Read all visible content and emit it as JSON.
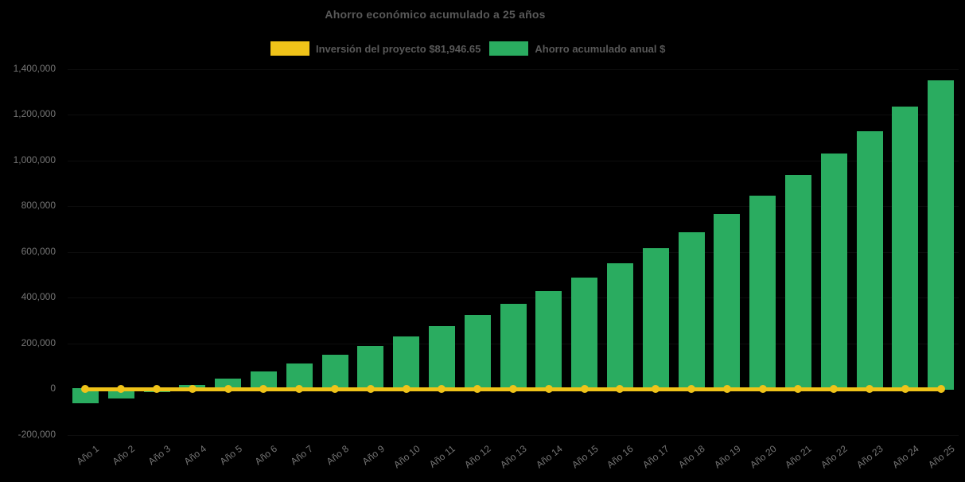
{
  "title": "Ahorro económico acumulado a 25 años",
  "legend": {
    "items": [
      {
        "label": "Inversión del proyecto $81,946.65",
        "color": "#EFC319",
        "series_type": "line"
      },
      {
        "label": "Ahorro acumulado anual $",
        "color": "#2AAC60",
        "series_type": "bar"
      }
    ]
  },
  "colors": {
    "background": "#000000",
    "bar_green": "#2AAC60",
    "line_yellow": "#EFC319",
    "title_text": "#595959",
    "axis_text": "#757575"
  },
  "y_axis": {
    "ticks": [
      {
        "label": "1,400,000",
        "value": 1400000
      },
      {
        "label": "1,200,000",
        "value": 1200000
      },
      {
        "label": "1,000,000",
        "value": 1000000
      },
      {
        "label": "800,000",
        "value": 800000
      },
      {
        "label": "600,000",
        "value": 600000
      },
      {
        "label": "400,000",
        "value": 400000
      },
      {
        "label": "200,000",
        "value": 200000
      },
      {
        "label": "0",
        "value": 0
      },
      {
        "label": "-200,000",
        "value": -200000
      }
    ]
  },
  "chart_data": {
    "type": "bar",
    "title": "Ahorro económico acumulado a 25 años",
    "categories": [
      "Año 1",
      "Año 2",
      "Año 3",
      "Año 4",
      "Año 5",
      "Año 6",
      "Año 7",
      "Año 8",
      "Año 9",
      "Año 10",
      "Año 11",
      "Año 12",
      "Año 13",
      "Año 14",
      "Año 15",
      "Año 16",
      "Año 17",
      "Año 18",
      "Año 19",
      "Año 20",
      "Año 21",
      "Año 22",
      "Año 23",
      "Año 24",
      "Año 25"
    ],
    "series": [
      {
        "name": "Ahorro acumulado anual $",
        "type": "bar",
        "color": "#2AAC60",
        "values": [
          -62000,
          -42000,
          -14000,
          18000,
          45000,
          78000,
          113000,
          150000,
          188000,
          229000,
          274000,
          322000,
          372000,
          428000,
          486000,
          549000,
          615000,
          686000,
          765000,
          845000,
          934000,
          1028000,
          1128000,
          1235000,
          1350000
        ]
      },
      {
        "name": "Inversión del proyecto $81,946.65",
        "type": "line",
        "color": "#EFC319",
        "marker": "circle",
        "values": [
          0,
          0,
          0,
          0,
          0,
          0,
          0,
          0,
          0,
          0,
          0,
          0,
          0,
          0,
          0,
          0,
          0,
          0,
          0,
          0,
          0,
          0,
          0,
          0,
          0
        ]
      }
    ],
    "xlabel": "",
    "ylabel": "",
    "ylim": [
      -200000,
      1400000
    ],
    "ytick_step": 200000,
    "legend_position": "top-center",
    "grid": "faint horizontal gridlines",
    "x_label_rotation_deg": -38,
    "background": "#000000"
  }
}
